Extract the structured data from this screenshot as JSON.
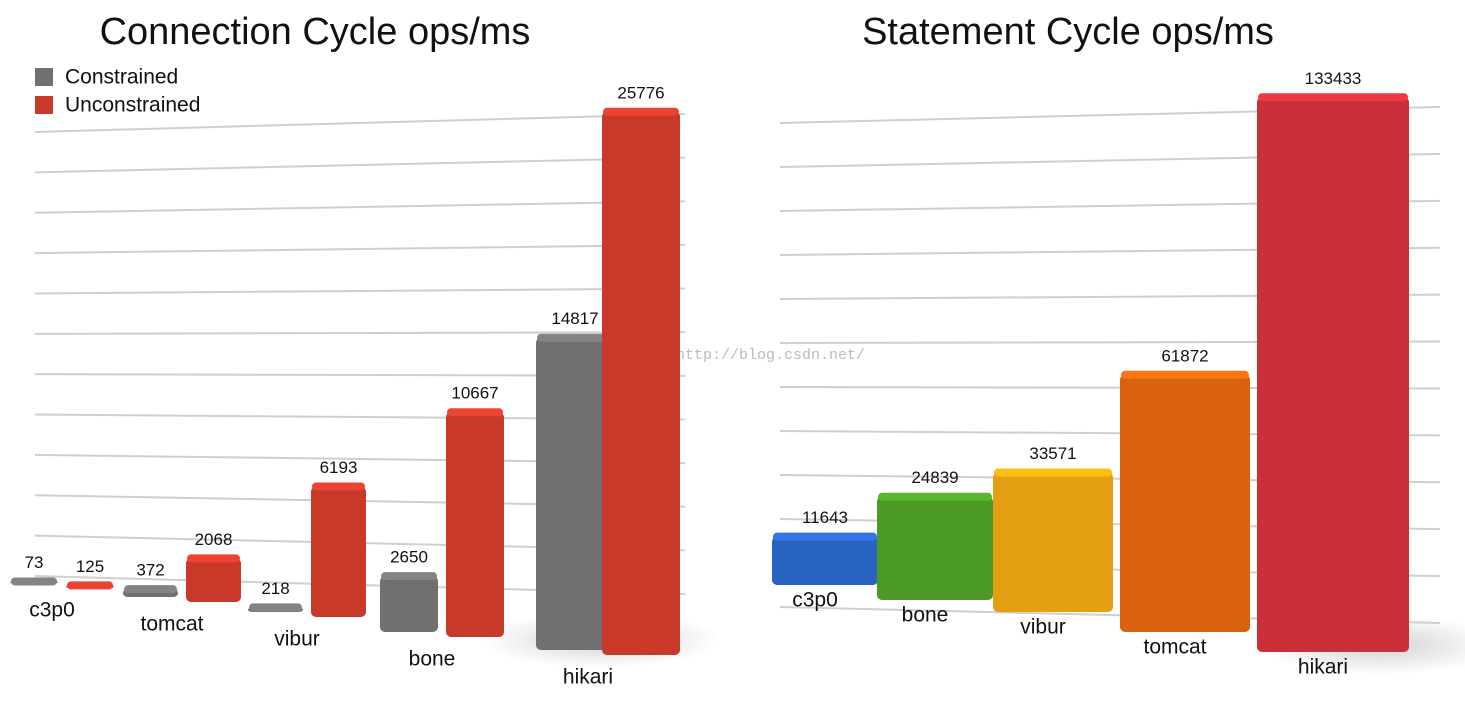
{
  "chart_data": [
    {
      "type": "bar",
      "title": "Connection Cycle ops/ms",
      "categories": [
        "c3p0",
        "tomcat",
        "vibur",
        "bone",
        "hikari"
      ],
      "series": [
        {
          "name": "Constrained",
          "color": "#707070",
          "values": [
            73,
            372,
            218,
            2650,
            14817
          ]
        },
        {
          "name": "Unconstrained",
          "color": "#c8392a",
          "values": [
            125,
            2068,
            6193,
            10667,
            25776
          ]
        }
      ],
      "ylim": [
        0,
        27000
      ],
      "legend": "top-left"
    },
    {
      "type": "bar",
      "title": "Statement Cycle ops/ms",
      "categories": [
        "c3p0",
        "bone",
        "vibur",
        "tomcat",
        "hikari"
      ],
      "values": [
        11643,
        24839,
        33571,
        61872,
        133433
      ],
      "colors": [
        "#2a64c2",
        "#4c9a26",
        "#e4a012",
        "#d9620f",
        "#c9303a"
      ],
      "ylim": [
        0,
        140000
      ]
    }
  ],
  "watermark": "http://blog.csdn.net/"
}
